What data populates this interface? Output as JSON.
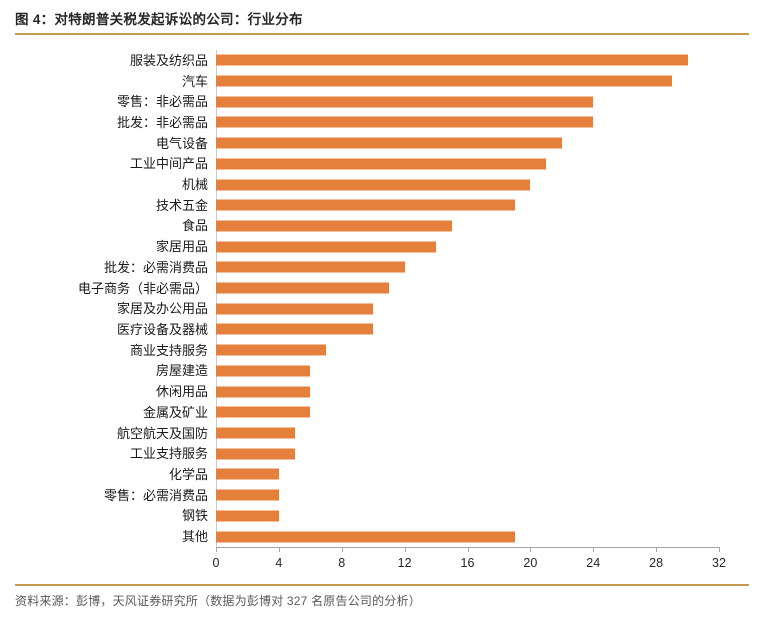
{
  "figure": {
    "title": "图 4：对特朗普关税发起诉讼的公司：行业分布",
    "source_note": "资料来源：彭博，天风证券研究所（数据为彭博对 327 名原告公司的分析）"
  },
  "colors": {
    "bar": "#E5803C",
    "gold_rule": "#C49A4E",
    "x_axis_line": "#A6A6A6",
    "y_axis_line": "#CCCCCC",
    "tick_mark": "#A6A6A6",
    "title_text": "#262626",
    "footer_text": "#595959",
    "label_text": "#1A1A1A"
  },
  "chart_data": {
    "type": "bar",
    "orientation": "horizontal",
    "title": "对特朗普关税发起诉讼的公司：行业分布",
    "categories": [
      "服装及纺织品",
      "汽车",
      "零售：非必需品",
      "批发：非必需品",
      "电气设备",
      "工业中间产品",
      "机械",
      "技术五金",
      "食品",
      "家居用品",
      "批发：必需消费品",
      "电子商务（非必需品）",
      "家居及办公用品",
      "医疗设备及器械",
      "商业支持服务",
      "房屋建造",
      "休闲用品",
      "金属及矿业",
      "航空航天及国防",
      "工业支持服务",
      "化学品",
      "零售：必需消费品",
      "钢铁",
      "其他"
    ],
    "values": [
      30,
      29,
      24,
      24,
      22,
      21,
      20,
      19,
      15,
      14,
      12,
      11,
      10,
      10,
      7,
      6,
      6,
      6,
      5,
      5,
      4,
      4,
      4,
      19
    ],
    "x_ticks": [
      0,
      4,
      8,
      12,
      16,
      20,
      24,
      28,
      32
    ],
    "xlim": [
      0,
      32
    ],
    "xlabel": "",
    "ylabel": "",
    "grid": false,
    "legend": false,
    "total_note_value": "327"
  }
}
